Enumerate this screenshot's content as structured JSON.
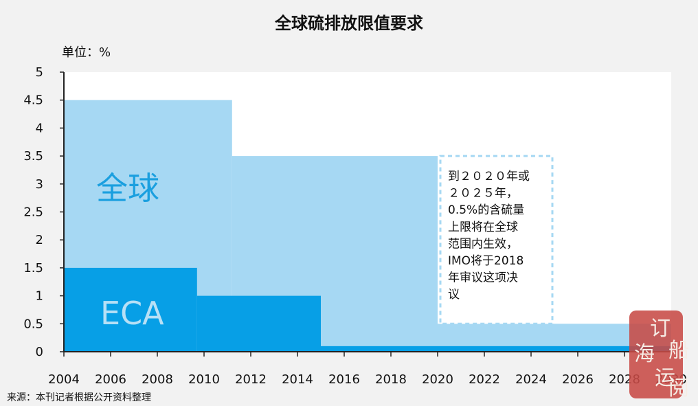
{
  "chart_data": {
    "type": "area",
    "title": "全球硫排放限值要求",
    "unit_label": "单位：%",
    "x_ticks": [
      "2004",
      "2006",
      "2008",
      "2010",
      "2012",
      "2014",
      "2016",
      "2018",
      "2020",
      "2022",
      "2024",
      "2026",
      "2028",
      "2030"
    ],
    "y_ticks": [
      "0",
      "0.5",
      "1",
      "1.5",
      "2",
      "2.5",
      "3",
      "3.5",
      "4",
      "4.5",
      "5"
    ],
    "xlim": [
      2004,
      2030
    ],
    "ylim": [
      0,
      5
    ],
    "grid": false,
    "series": [
      {
        "name": "全球",
        "color": "#a6d8f3",
        "steps": [
          {
            "x0": 2004,
            "x1": 2011.2,
            "y": 4.5
          },
          {
            "x0": 2011.2,
            "x1": 2020,
            "y": 3.5
          },
          {
            "x0": 2020,
            "x1": 2030,
            "y": 0.5
          }
        ]
      },
      {
        "name": "ECA",
        "color": "#079fe6",
        "steps": [
          {
            "x0": 2004,
            "x1": 2009.7,
            "y": 1.5
          },
          {
            "x0": 2009.7,
            "x1": 2015,
            "y": 1.0
          },
          {
            "x0": 2015,
            "x1": 2030,
            "y": 0.1
          }
        ]
      }
    ],
    "annotation_lines": [
      "到２０２０年或",
      "２０２５年，",
      "0.5%的含硫量",
      "上限将在全球",
      "范围内生效，",
      "IMO将于2018",
      "年审议这项决",
      "议"
    ]
  },
  "source": "来源：本刊记者根据公开资料整理",
  "stamp_text": [
    "订",
    "船",
    "海",
    "运",
    "阅"
  ],
  "colors": {
    "background": "#f2f2f2",
    "plot_background": "#ffffff",
    "global": "#a6d8f3",
    "eca": "#079fe6",
    "stamp": "#c74a45"
  }
}
